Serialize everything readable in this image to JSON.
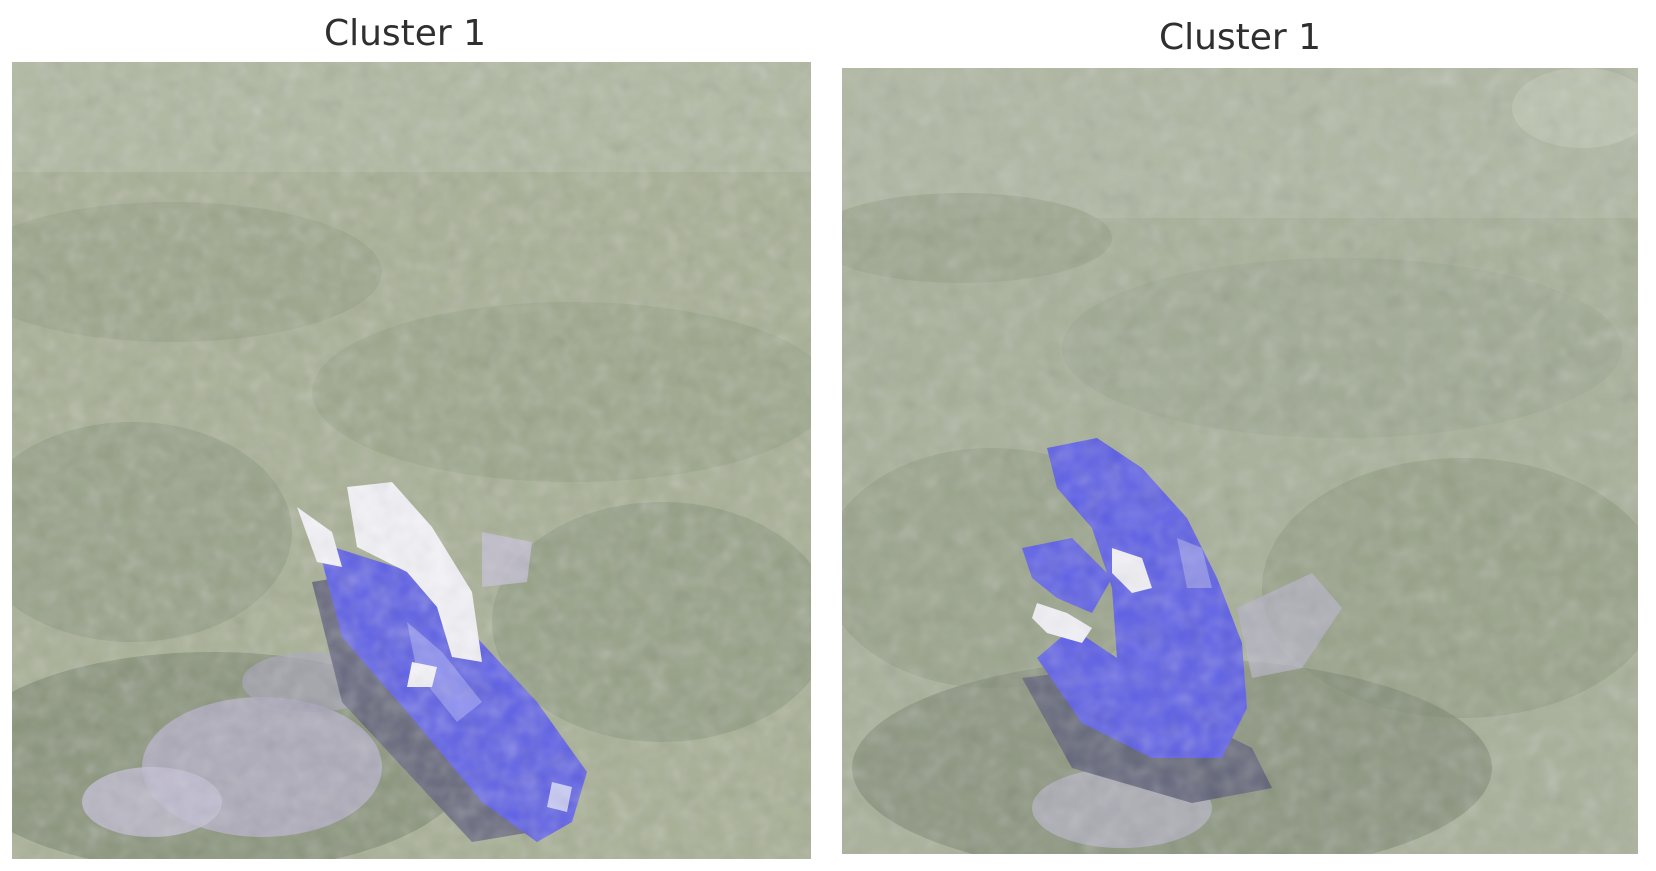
{
  "panels": [
    {
      "title": "Cluster 1",
      "image": {
        "description": "Pixelated aerial patch of grass with a blue-highlighted object lying diagonally near the lower center",
        "colors": {
          "grass": "#a9b196",
          "grass_dark": "#7f8a70",
          "grass_light": "#c3c8b3",
          "highlight": "#5d5fe6",
          "highlight_light": "#8c8ff0",
          "white_patch": "#f4f3f8",
          "shadow": "#5f627c",
          "rock": "#b7b2c9"
        }
      }
    },
    {
      "title": "Cluster 1",
      "image": {
        "description": "Pixelated aerial patch of grass with a blue-highlighted curved object slightly below center",
        "colors": {
          "grass": "#a8b19a",
          "grass_dark": "#7e8872",
          "grass_light": "#c2c8b3",
          "highlight": "#5b5de6",
          "highlight_light": "#8d8fea",
          "white_patch": "#f1f0f6",
          "shadow": "#5c5f78",
          "rock": "#b6b4c6"
        }
      }
    }
  ]
}
